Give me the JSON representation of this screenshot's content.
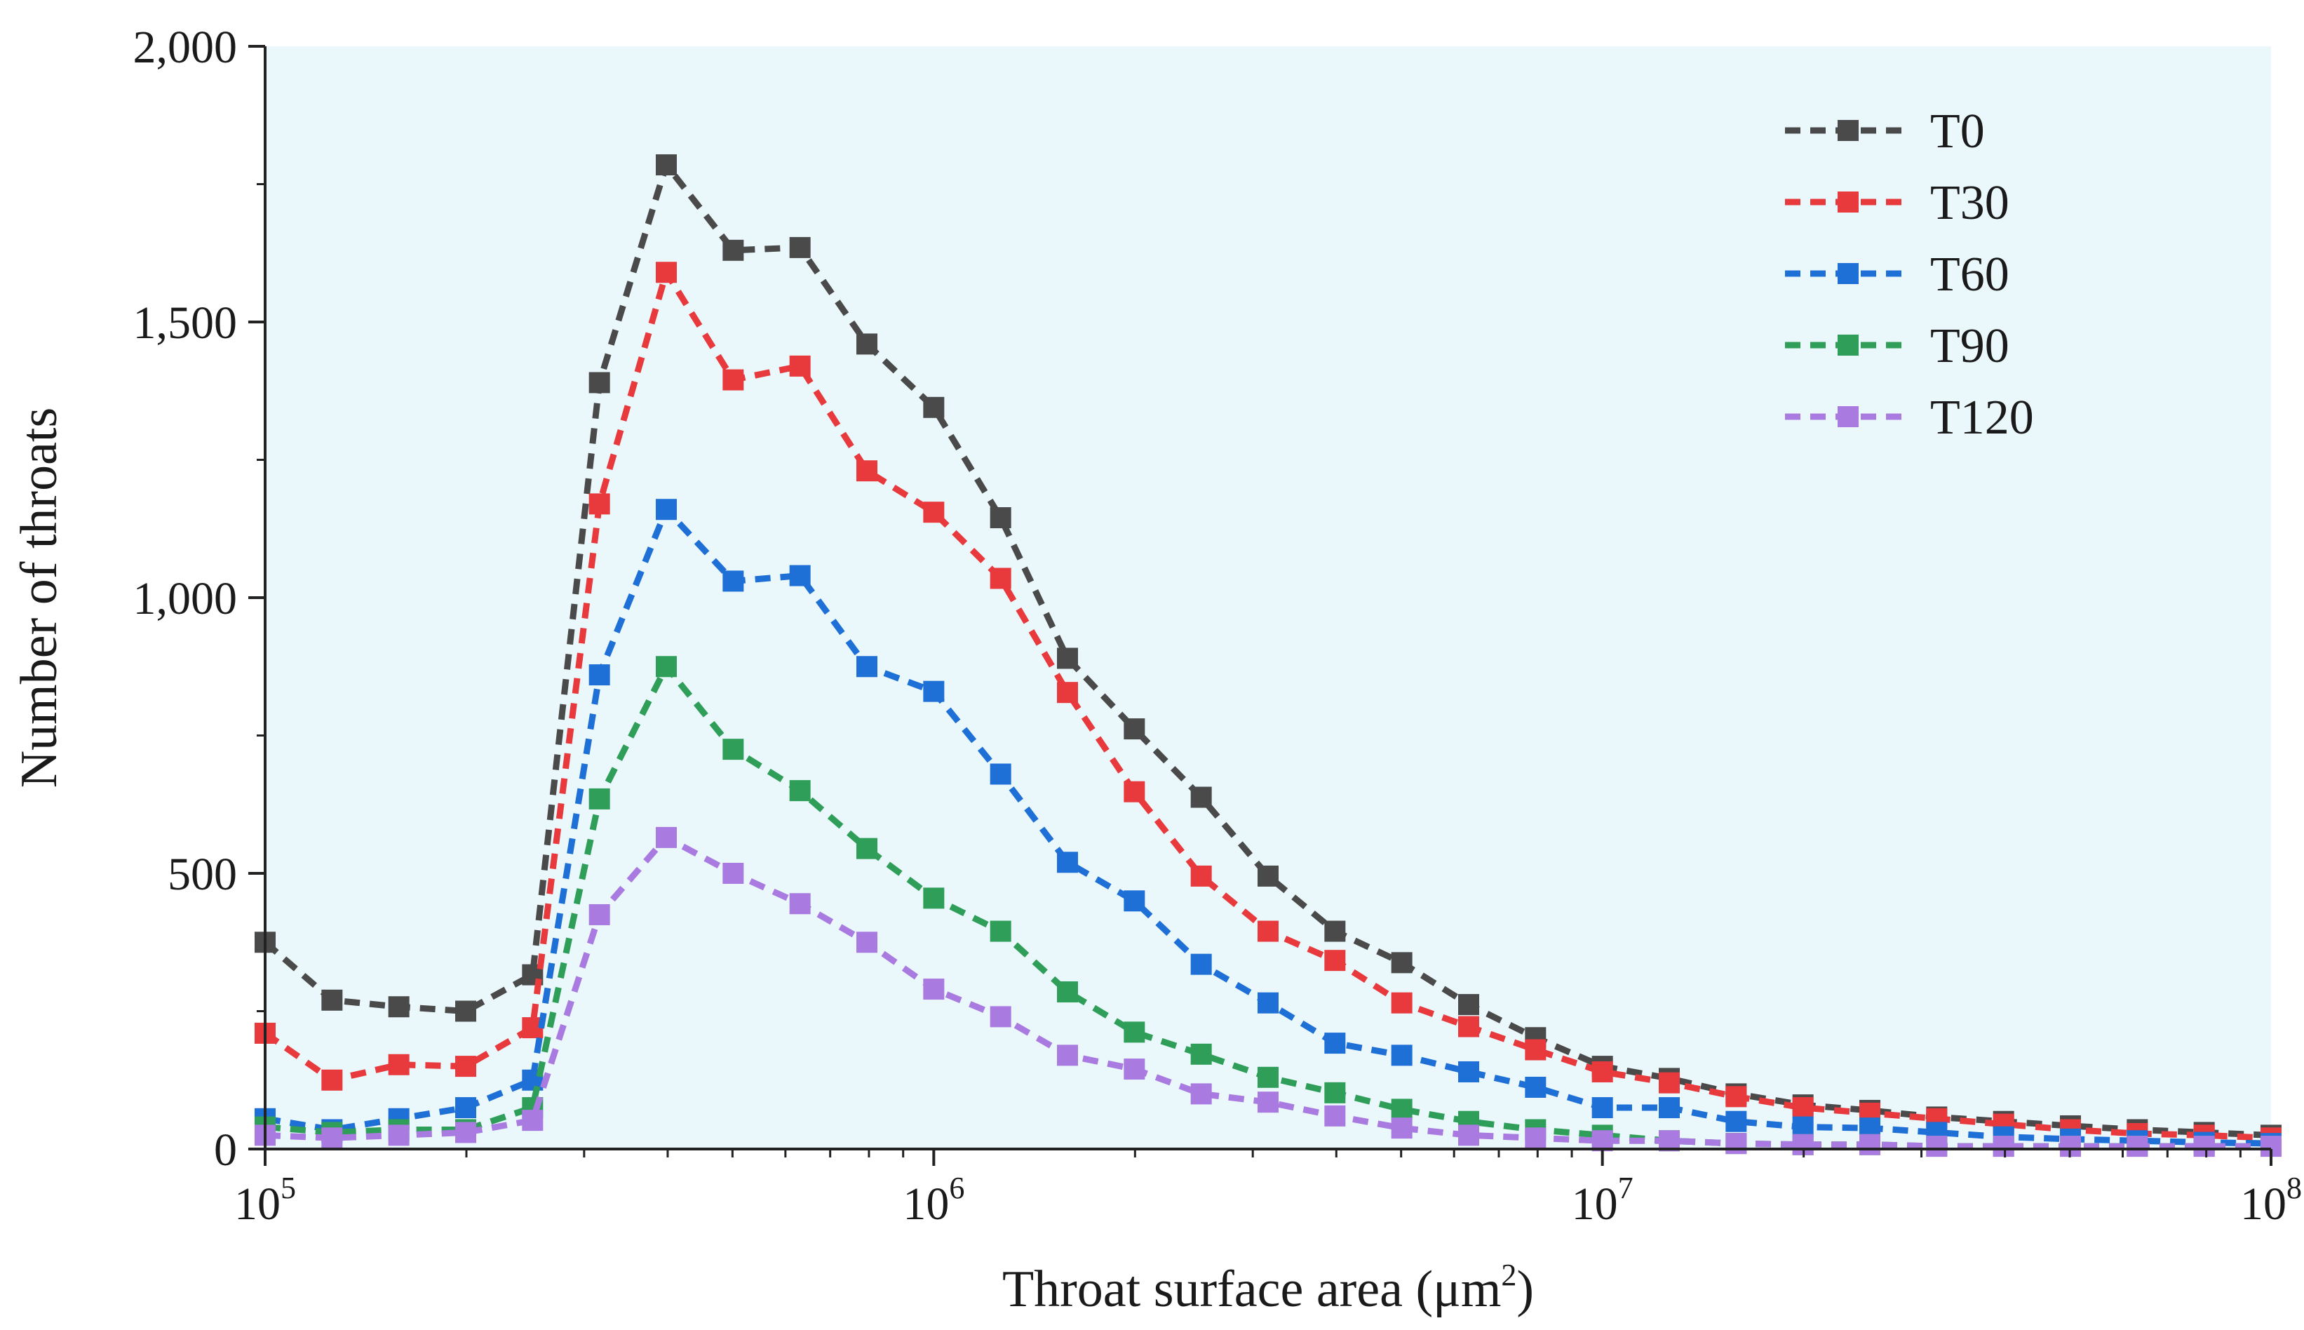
{
  "chart_data": {
    "type": "line",
    "x_scale": "log",
    "xlim_exp": [
      5,
      8
    ],
    "ylim": [
      0,
      2000
    ],
    "xlabel": {
      "prefix": "Throat surface area (μm",
      "sup": "2",
      "suffix": ")"
    },
    "ylabel": "Number of throats",
    "x_ticks": [
      {
        "base": "10",
        "exp": "5"
      },
      {
        "base": "10",
        "exp": "6"
      },
      {
        "base": "10",
        "exp": "7"
      },
      {
        "base": "10",
        "exp": "8"
      }
    ],
    "y_ticks": [
      {
        "value": 0,
        "label": "0"
      },
      {
        "value": 500,
        "label": "500"
      },
      {
        "value": 1000,
        "label": "1,000"
      },
      {
        "value": 1500,
        "label": "1,500"
      },
      {
        "value": 2000,
        "label": "2,000"
      }
    ],
    "legend_position": "top-right",
    "background_color": "#eaf8fc",
    "x_exponents": [
      5.0,
      5.1,
      5.2,
      5.3,
      5.4,
      5.5,
      5.6,
      5.7,
      5.8,
      5.9,
      6.0,
      6.1,
      6.2,
      6.3,
      6.4,
      6.5,
      6.6,
      6.7,
      6.8,
      6.9,
      7.0,
      7.1,
      7.2,
      7.3,
      7.4,
      7.5,
      7.6,
      7.7,
      7.8,
      7.9,
      8.0
    ],
    "series": [
      {
        "name": "T0",
        "color": "#4a4a4a",
        "values": [
          375,
          270,
          258,
          250,
          316,
          1390,
          1785,
          1630,
          1635,
          1460,
          1345,
          1145,
          890,
          762,
          638,
          495,
          395,
          338,
          262,
          202,
          150,
          128,
          100,
          80,
          70,
          58,
          50,
          42,
          35,
          30,
          25
        ]
      },
      {
        "name": "T30",
        "color": "#e8393d",
        "values": [
          210,
          125,
          153,
          150,
          220,
          1170,
          1590,
          1395,
          1420,
          1230,
          1155,
          1035,
          828,
          648,
          495,
          395,
          342,
          265,
          222,
          180,
          140,
          120,
          95,
          75,
          65,
          55,
          45,
          35,
          28,
          25,
          20
        ]
      },
      {
        "name": "T60",
        "color": "#1e6fd6",
        "values": [
          55,
          35,
          55,
          75,
          125,
          860,
          1160,
          1030,
          1040,
          875,
          830,
          680,
          520,
          450,
          335,
          265,
          192,
          170,
          140,
          112,
          75,
          75,
          50,
          40,
          38,
          30,
          22,
          18,
          15,
          12,
          10
        ]
      },
      {
        "name": "T90",
        "color": "#2e9e58",
        "values": [
          40,
          30,
          35,
          35,
          75,
          635,
          875,
          725,
          650,
          545,
          455,
          395,
          285,
          212,
          172,
          130,
          102,
          72,
          50,
          35,
          25,
          15,
          10,
          8,
          8,
          5,
          5,
          5,
          5,
          5,
          5
        ]
      },
      {
        "name": "T120",
        "color": "#a97be0",
        "values": [
          25,
          20,
          25,
          30,
          52,
          425,
          565,
          500,
          445,
          375,
          290,
          240,
          170,
          145,
          100,
          85,
          60,
          38,
          25,
          20,
          15,
          15,
          10,
          8,
          8,
          5,
          5,
          5,
          5,
          5,
          5
        ]
      }
    ]
  }
}
